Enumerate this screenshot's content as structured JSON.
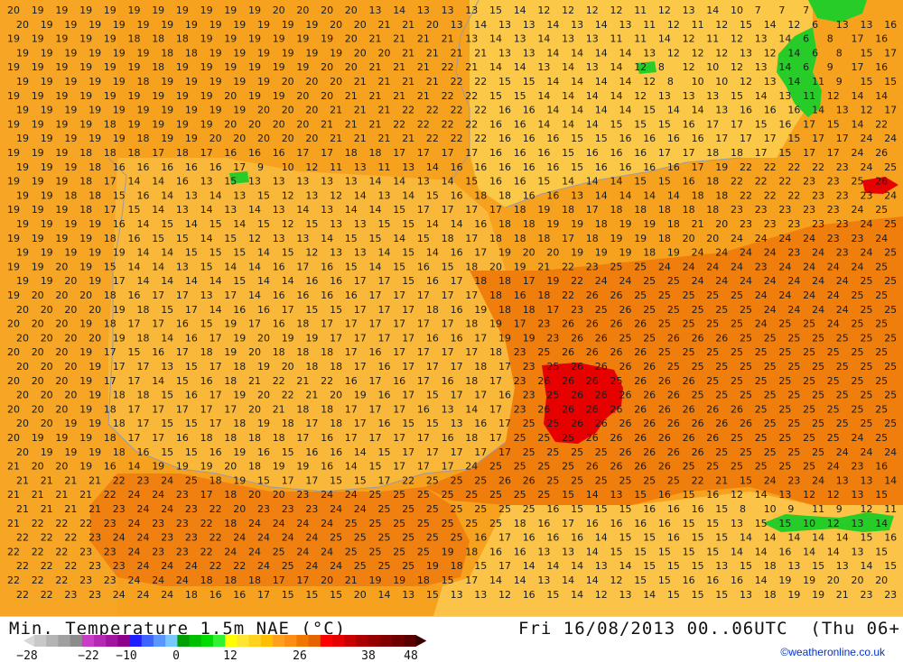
{
  "header": {
    "title_left": "Min. Temperature 1.5m NAE (°C)",
    "title_right": "Fri 16/08/2013 00..06UTC  (Thu 06+"
  },
  "credit": "©weatheronline.co.uk",
  "legend": {
    "colors": [
      "#c8c8c8",
      "#b4b4b4",
      "#a0a0a0",
      "#8c8c8c",
      "#c83cc8",
      "#b428b4",
      "#a014a0",
      "#8c008c",
      "#1e1eff",
      "#3c64ff",
      "#5a96ff",
      "#78c8ff",
      "#00a000",
      "#00be00",
      "#00dc00",
      "#32f032",
      "#ffff00",
      "#ffe632",
      "#ffd21e",
      "#ffbe00",
      "#ffa01e",
      "#ff8c14",
      "#f07800",
      "#e66400",
      "#ff0000",
      "#e60000",
      "#c80000",
      "#aa0000",
      "#960000",
      "#820000",
      "#6e0000",
      "#5a0000"
    ],
    "ticks": [
      "−28",
      "−22",
      "−10",
      "0",
      "12",
      "26",
      "38",
      "48"
    ]
  },
  "regions": {
    "high_pressure_red_center": "26",
    "notes_visible_value_glyph_scale": "°C"
  },
  "grid": {
    "rows": [
      "20 19 19 19 19 19 19 19 19 19 19 20 20 20 20 13 14 13 13 13 15 14 12 12 12 12 11 12 13 14 10 7 7 7",
      "20 19 19 19 19 19 19 19 19 19 19 19 19 20 20 21 21 20 13 14 13 13 14 13 14 13 11 12 11 12 15 14 12 6 13 13 16 16",
      "19 19 19 19 19 18 18 18 19 19 19 19 19 19 20 21 21 21 21 13 14 13 14 13 13 11 11 14 12 11 12 13 14 6 8 17 16 17",
      "19 19 19 19 19 19 18 18 19 19 19 19 19 19 20 20 21 21 21 21 13 13 14 14 14 14 13 12 12 12 13 12 14 6 8 15 17 16",
      "19 19 19 19 19 19 18 19 19 19 19 19 19 20 20 21 21 21 22 21 14 14 13 14 13 14 12 8 12 10 12 13 14 6 9 17 16 16",
      "19 19 19 19 19 18 19 19 19 19 19 20 20 20 21 21 21 21 22 22 15 15 14 14 14 14 12 8 10 10 12 13 14 11 9 15 15 15",
      "19 19 19 19 19 19 19 19 19 20 19 19 20 20 21 21 21 21 22 22 15 15 14 14 14 14 12 13 13 13 15 14 13 11 12 14 14 14",
      "19 19 19 19 19 19 19 19 19 19 20 20 20 21 21 21 22 22 22 22 16 16 14 14 14 14 15 14 14 13 16 16 16 14 13 12 17 24",
      "19 19 19 19 18 19 19 19 19 20 20 20 20 21 21 21 22 22 22 22 16 16 14 14 14 15 15 15 16 17 17 15 16 17 15 14 22 23",
      "19 19 19 19 19 18 19 19 20 20 20 20 20 21 21 21 21 22 22 22 16 16 16 15 15 16 16 16 16 17 17 17 15 17 17 24 24 25",
      "19 19 19 18 18 18 17 18 17 16 16 16 17 17 18 18 17 17 17 17 16 16 16 15 16 16 16 17 17 18 18 17 15 17 17 24 26 26",
      "19 19 19 18 16 16 16 16 16 17 9 10 12 11 13 11 13 14 16 16 16 16 16 15 16 16 16 16 17 19 22 22 22 22 23 24 25 26",
      "19 19 19 18 17 14 14 16 13 15 13 13 13 13 13 14 14 13 14 15 16 16 15 14 14 14 15 15 16 18 22 22 22 23 23 25 26 26",
      "19 19 18 18 15 16 14 13 14 13 15 12 13 12 14 13 14 15 16 18 18 16 16 13 14 14 14 14 18 18 22 22 22 23 23 23 24 25",
      "19 19 19 18 17 15 14 13 14 13 14 13 14 13 14 14 15 17 17 17 17 18 19 18 17 18 18 18 18 18 23 23 23 23 23 24 25 26",
      "19 19 19 19 16 14 15 14 15 14 15 12 15 13 13 15 15 14 14 16 18 18 19 19 18 19 19 18 21 20 23 23 23 23 23 24 25 25",
      "19 19 19 19 18 16 15 15 14 15 12 13 13 14 15 15 14 15 18 17 18 18 18 17 18 19 19 18 20 20 24 24 24 24 23 23 24 25",
      "19 19 19 19 19 14 14 15 15 15 14 15 12 13 13 14 15 14 16 17 19 20 20 19 19 19 18 19 24 24 24 24 23 24 23 24 25 25",
      "19 19 20 19 15 14 14 13 15 14 14 16 17 16 15 14 15 16 15 18 20 19 21 22 23 25 25 24 24 24 24 23 24 24 24 24 25 25",
      "19 19 20 19 17 14 14 14 14 15 14 14 16 16 17 17 15 16 17 18 18 17 19 22 24 24 25 25 24 24 24 24 24 24 24 25 25 25",
      "19 20 20 20 18 16 17 17 13 17 14 16 16 16 16 17 17 17 17 17 18 16 18 22 26 26 25 25 25 25 25 24 24 24 24 25 25 25",
      "20 20 20 20 19 18 15 17 14 16 16 17 15 15 17 17 17 18 16 19 18 18 17 23 25 26 25 25 25 25 25 24 24 24 24 25 25 25",
      "20 20 20 19 18 17 17 16 15 19 17 16 18 17 17 17 17 17 17 18 19 17 23 26 26 26 26 25 25 25 25 24 25 25 24 25 25 25",
      "20 20 20 20 19 18 14 16 17 19 20 19 19 17 17 17 17 16 16 17 19 19 23 26 26 25 25 26 26 26 25 25 25 25 25 25 25 25",
      "20 20 20 19 17 15 16 17 18 19 20 18 18 18 17 16 17 17 17 17 18 23 25 26 26 26 26 25 25 25 25 25 25 25 25 25 25 25",
      "20 20 20 19 17 17 13 15 17 18 19 20 18 18 17 16 17 17 17 18 17 23 25 26 26 26 26 25 25 25 25 25 25 25 25 25 25 25",
      "20 20 20 19 17 17 14 15 16 18 21 22 21 22 16 17 16 17 16 18 17 23 26 26 26 25 26 26 26 25 25 25 25 25 25 25 25 25",
      "20 20 20 19 18 18 15 16 17 19 20 22 21 20 19 16 17 15 17 17 16 23 25 26 26 26 26 26 25 25 25 25 25 25 25 25 25 25",
      "20 20 20 19 18 17 17 17 17 17 20 21 18 18 17 17 17 16 13 14 17 23 26 26 26 26 26 26 26 26 26 25 25 25 25 25 25 25",
      "20 20 19 19 18 17 15 15 17 18 19 18 17 18 17 16 15 15 13 16 17 25 25 26 26 26 26 26 26 26 26 25 25 25 25 25 25 25",
      "20 19 19 19 18 17 17 16 18 18 18 18 17 16 17 17 17 17 16 18 17 25 25 25 26 26 26 26 26 26 25 25 25 25 25 24 25 25",
      "20 19 19 19 18 16 15 15 16 19 16 15 16 16 14 15 17 17 17 17 17 25 25 25 25 26 26 26 26 25 25 25 25 25 24 24 24 25",
      "21 20 20 19 16 14 19 19 19 20 18 19 19 16 14 15 17 17 17 24 25 25 25 25 26 26 26 26 25 25 25 25 25 25 24 23 16 17",
      "21 21 21 21 22 23 24 25 18 19 15 17 17 15 15 17 22 25 25 25 26 26 25 25 25 25 25 25 22 21 15 24 23 24 13 13 14 15",
      "21 21 21 21 22 24 24 23 17 18 20 20 23 24 24 25 25 25 25 25 25 25 25 15 14 13 15 16 15 16 12 14 13 12 12 13 15 13",
      "21 21 21 21 23 24 24 23 22 20 23 23 23 24 24 25 25 25 25 25 25 25 16 15 15 15 16 16 16 15 8 10 9 11 9 12 11 12",
      "21 22 22 22 23 24 23 23 22 18 24 24 24 24 25 25 25 25 25 25 25 18 16 17 16 16 16 16 15 15 13 15 15 10 12 13 14 12",
      "22 22 22 23 24 24 23 23 22 24 24 24 24 25 25 25 25 25 25 16 17 16 16 16 14 15 15 16 15 15 14 14 14 14 14 15 16 16",
      "22 22 22 23 23 24 23 23 22 24 24 25 24 24 25 25 25 25 19 18 16 16 13 13 14 15 15 15 15 15 14 14 16 14 14 13 15 15",
      "22 22 22 23 23 24 24 24 22 22 24 25 24 24 25 25 25 19 18 15 17 14 14 14 13 14 15 15 15 13 15 18 13 15 13 14 15 17",
      "22 22 22 23 23 24 24 24 18 18 18 17 17 20 21 19 19 18 15 17 14 14 13 14 14 12 15 15 16 16 16 14 19 19 20 20 20 24",
      "22 22 23 23 24 24 24 18 16 16 17 15 15 15 20 14 13 15 13 13 12 16 15 14 12 13 14 15 15 15 13 18 19 19 21 23 23 24"
    ]
  }
}
